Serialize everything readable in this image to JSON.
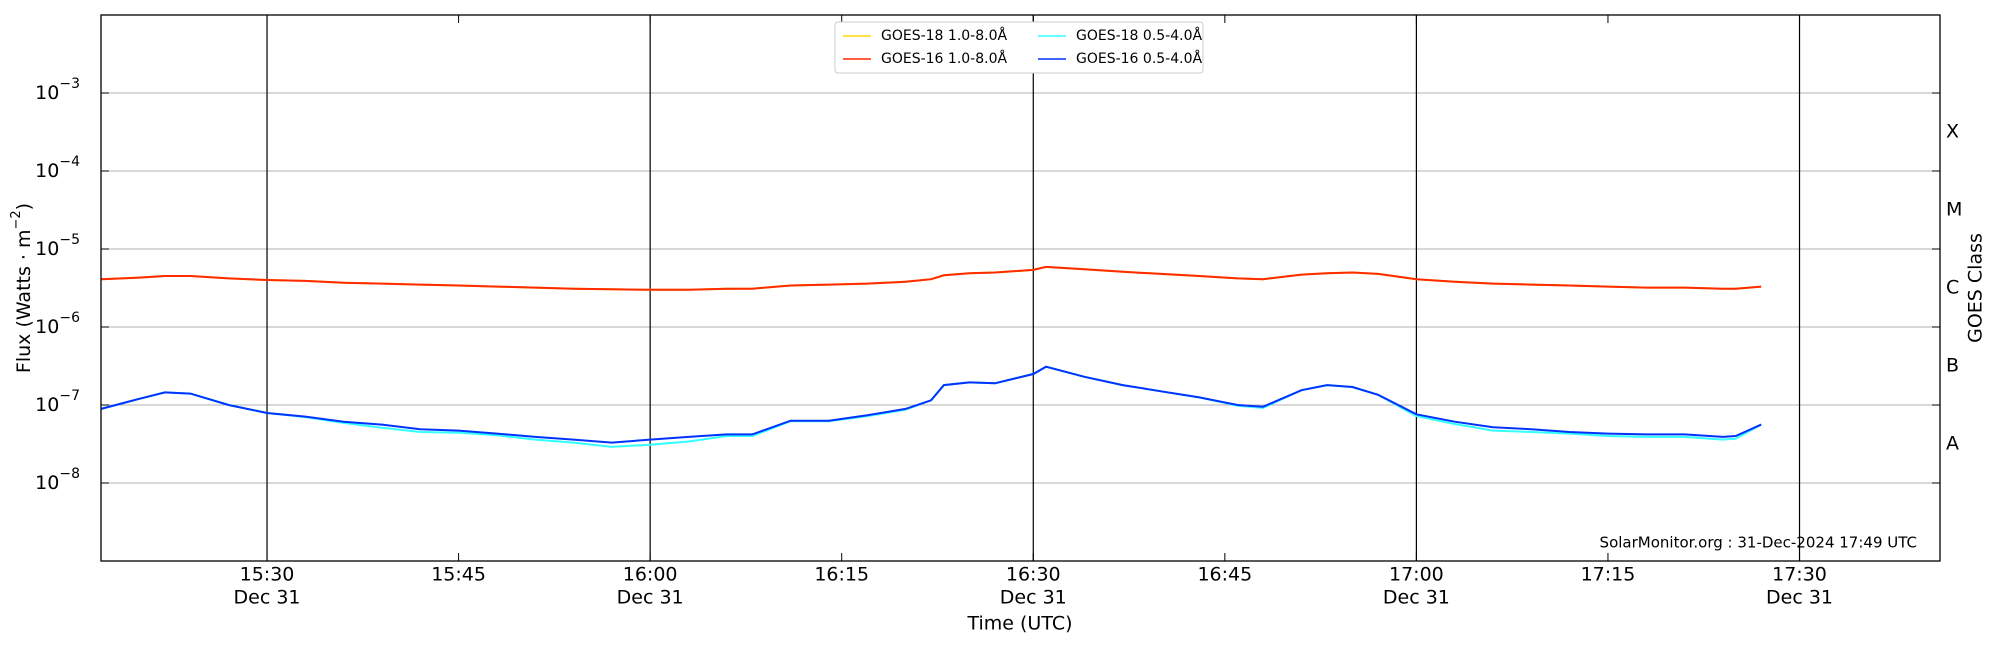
{
  "chart_data": {
    "type": "line",
    "xlabel": "Time (UTC)",
    "ylabel": {
      "text": "Flux (Watts · m",
      "exponent": "−2",
      "end": ")"
    },
    "y2label": "GOES Class",
    "footer": "SolarMonitor.org : 31-Dec-2024 17:49 UTC",
    "log_y": true,
    "grid": true,
    "legend": "upper center",
    "x": [
      "15:17",
      "15:20",
      "15:22",
      "15:24",
      "15:27",
      "15:30",
      "15:33",
      "15:36",
      "15:39",
      "15:42",
      "15:45",
      "15:48",
      "15:51",
      "15:54",
      "15:57",
      "16:00",
      "16:03",
      "16:06",
      "16:08",
      "16:11",
      "16:14",
      "16:17",
      "16:20",
      "16:22",
      "16:23",
      "16:25",
      "16:27",
      "16:30",
      "16:31",
      "16:34",
      "16:37",
      "16:40",
      "16:43",
      "16:46",
      "16:48",
      "16:51",
      "16:53",
      "16:55",
      "16:57",
      "17:00",
      "17:03",
      "17:06",
      "17:09",
      "17:12",
      "17:15",
      "17:18",
      "17:21",
      "17:24",
      "17:25",
      "17:27"
    ],
    "xlim": [
      "15:17",
      "17:41"
    ],
    "xticks": [
      {
        "value": "15:30",
        "label": [
          "15:30",
          "Dec 31"
        ]
      },
      "15:45",
      {
        "value": "16:00",
        "label": [
          "16:00",
          "Dec 31"
        ]
      },
      "16:15",
      {
        "value": "16:30",
        "label": [
          "16:30",
          "Dec 31"
        ]
      },
      "16:45",
      {
        "value": "17:00",
        "label": [
          "17:00",
          "Dec 31"
        ]
      },
      "17:15",
      {
        "value": "17:30",
        "label": [
          "17:30",
          "Dec 31"
        ]
      }
    ],
    "vlines": [
      "15:30",
      "16:00",
      "16:30",
      "17:00",
      "17:30"
    ],
    "ylim": [
      1e-09,
      0.01
    ],
    "yticks": [
      {
        "value": 1e-08,
        "label": "10",
        "exponent": "−8"
      },
      {
        "value": 1e-07,
        "label": "10",
        "exponent": "−7"
      },
      {
        "value": 1e-06,
        "label": "10",
        "exponent": "−6"
      },
      {
        "value": 1e-05,
        "label": "10",
        "exponent": "−5"
      },
      {
        "value": 0.0001,
        "label": "10",
        "exponent": "−4"
      },
      {
        "value": 0.001,
        "label": "10",
        "exponent": "−3"
      }
    ],
    "y2ticks": [
      {
        "value": 3.16e-08,
        "label": "A"
      },
      {
        "value": 3.16e-07,
        "label": "B"
      },
      {
        "value": 3.16e-06,
        "label": "C"
      },
      {
        "value": 3.16e-05,
        "label": "M"
      },
      {
        "value": 0.000316,
        "label": "X"
      }
    ],
    "series": [
      {
        "name": "GOES-18 1.0-8.0Å",
        "color": "#ffd700",
        "values": [
          4.1e-06,
          4.3e-06,
          4.5e-06,
          4.5e-06,
          4.2e-06,
          4e-06,
          3.9e-06,
          3.7e-06,
          3.6e-06,
          3.5e-06,
          3.4e-06,
          3.3e-06,
          3.2e-06,
          3.1e-06,
          3.05e-06,
          3e-06,
          3e-06,
          3.1e-06,
          3.1e-06,
          3.4e-06,
          3.5e-06,
          3.6e-06,
          3.8e-06,
          4.1e-06,
          4.6e-06,
          4.9e-06,
          5e-06,
          5.4e-06,
          5.9e-06,
          5.5e-06,
          5.1e-06,
          4.8e-06,
          4.5e-06,
          4.2e-06,
          4.1e-06,
          4.7e-06,
          4.9e-06,
          5e-06,
          4.8e-06,
          4.1e-06,
          3.8e-06,
          3.6e-06,
          3.5e-06,
          3.4e-06,
          3.3e-06,
          3.2e-06,
          3.2e-06,
          3.1e-06,
          3.1e-06,
          3.3e-06
        ]
      },
      {
        "name": "GOES-16 1.0-8.0Å",
        "color": "#ff2a00",
        "values": [
          4.1e-06,
          4.3e-06,
          4.5e-06,
          4.5e-06,
          4.2e-06,
          4e-06,
          3.9e-06,
          3.7e-06,
          3.6e-06,
          3.5e-06,
          3.4e-06,
          3.3e-06,
          3.2e-06,
          3.1e-06,
          3.05e-06,
          3e-06,
          3e-06,
          3.1e-06,
          3.1e-06,
          3.4e-06,
          3.5e-06,
          3.6e-06,
          3.8e-06,
          4.1e-06,
          4.6e-06,
          4.9e-06,
          5e-06,
          5.4e-06,
          5.9e-06,
          5.5e-06,
          5.1e-06,
          4.8e-06,
          4.5e-06,
          4.2e-06,
          4.1e-06,
          4.7e-06,
          4.9e-06,
          5e-06,
          4.8e-06,
          4.1e-06,
          3.8e-06,
          3.6e-06,
          3.5e-06,
          3.4e-06,
          3.3e-06,
          3.2e-06,
          3.2e-06,
          3.1e-06,
          3.1e-06,
          3.3e-06
        ]
      },
      {
        "name": "GOES-18 0.5-4.0Å",
        "color": "#33ffff",
        "values": [
          8.9e-08,
          1.2e-07,
          1.45e-07,
          1.4e-07,
          1e-07,
          7.9e-08,
          7e-08,
          5.9e-08,
          5.1e-08,
          4.5e-08,
          4.4e-08,
          4.1e-08,
          3.6e-08,
          3.3e-08,
          2.9e-08,
          3.1e-08,
          3.4e-08,
          4e-08,
          4e-08,
          6.2e-08,
          6.2e-08,
          7.2e-08,
          8.7e-08,
          1.15e-07,
          1.8e-07,
          1.95e-07,
          1.9e-07,
          2.5e-07,
          3.1e-07,
          2.3e-07,
          1.8e-07,
          1.5e-07,
          1.25e-07,
          9.8e-08,
          9.2e-08,
          1.55e-07,
          1.8e-07,
          1.7e-07,
          1.35e-07,
          7.2e-08,
          5.7e-08,
          4.7e-08,
          4.5e-08,
          4.3e-08,
          4e-08,
          3.9e-08,
          3.9e-08,
          3.6e-08,
          3.7e-08,
          5.6e-08
        ]
      },
      {
        "name": "GOES-16 0.5-4.0Å",
        "color": "#0033ff",
        "values": [
          8.9e-08,
          1.2e-07,
          1.45e-07,
          1.4e-07,
          1e-07,
          7.9e-08,
          7.1e-08,
          6.1e-08,
          5.6e-08,
          4.9e-08,
          4.7e-08,
          4.3e-08,
          3.9e-08,
          3.6e-08,
          3.3e-08,
          3.6e-08,
          3.9e-08,
          4.2e-08,
          4.2e-08,
          6.3e-08,
          6.3e-08,
          7.4e-08,
          8.9e-08,
          1.15e-07,
          1.8e-07,
          1.95e-07,
          1.9e-07,
          2.5e-07,
          3.1e-07,
          2.3e-07,
          1.8e-07,
          1.5e-07,
          1.25e-07,
          1e-07,
          9.5e-08,
          1.55e-07,
          1.8e-07,
          1.7e-07,
          1.35e-07,
          7.6e-08,
          6.1e-08,
          5.2e-08,
          4.9e-08,
          4.5e-08,
          4.3e-08,
          4.2e-08,
          4.2e-08,
          3.9e-08,
          4e-08,
          5.6e-08
        ]
      }
    ]
  }
}
